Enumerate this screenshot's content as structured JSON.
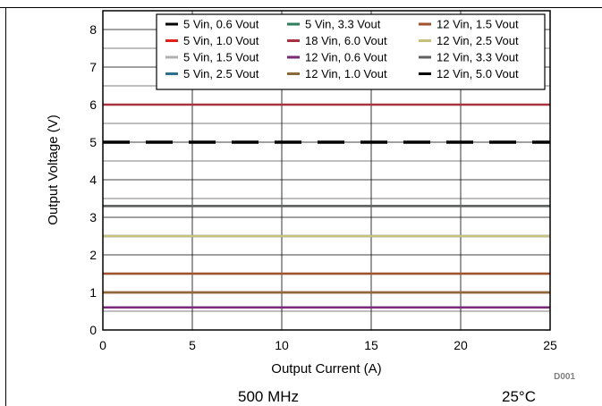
{
  "chart_data": {
    "type": "line",
    "xlabel": "Output Current (A)",
    "ylabel": "Output Voltage (V)",
    "xlim": [
      0,
      25
    ],
    "ylim": [
      0,
      8.5
    ],
    "xticks": [
      0,
      5,
      10,
      15,
      20,
      25
    ],
    "yticks": [
      0,
      1,
      2,
      3,
      4,
      5,
      6,
      7,
      8
    ],
    "grid": true,
    "legend_position": "top-right",
    "x": [
      0,
      25
    ],
    "series": [
      {
        "name": "5 Vin, 0.6 Vout",
        "color": "#000000",
        "values": [
          0.6,
          0.6
        ]
      },
      {
        "name": "5 Vin, 1.0 Vout",
        "color": "#e0201f",
        "values": [
          1.0,
          1.0
        ]
      },
      {
        "name": "5 Vin, 1.5 Vout",
        "color": "#b0b0b0",
        "values": [
          1.5,
          1.5
        ]
      },
      {
        "name": "5 Vin, 2.5 Vout",
        "color": "#2f6f8f",
        "values": [
          2.5,
          2.5
        ]
      },
      {
        "name": "5 Vin, 3.3 Vout",
        "color": "#2e7d5b",
        "values": [
          3.3,
          3.3
        ]
      },
      {
        "name": "18 Vin, 6.0 Vout",
        "color": "#a8323e",
        "values": [
          6.0,
          6.0
        ]
      },
      {
        "name": "12 Vin, 0.6 Vout",
        "color": "#7a2a7a",
        "values": [
          0.6,
          0.6
        ]
      },
      {
        "name": "12 Vin, 1.0 Vout",
        "color": "#8b6a3a",
        "values": [
          1.0,
          1.0
        ]
      },
      {
        "name": "12 Vin, 1.5 Vout",
        "color": "#a0522d",
        "values": [
          1.5,
          1.5
        ]
      },
      {
        "name": "12 Vin, 2.5 Vout",
        "color": "#c8c07a",
        "values": [
          2.5,
          2.5
        ]
      },
      {
        "name": "12 Vin, 3.3 Vout",
        "color": "#606060",
        "values": [
          3.3,
          3.3
        ]
      },
      {
        "name": "12 Vin, 5.0 Vout",
        "color": "#000000",
        "dashed": true,
        "values": [
          5.0,
          5.0
        ]
      }
    ],
    "legend_order": [
      0,
      4,
      8,
      1,
      5,
      9,
      2,
      6,
      10,
      3,
      7,
      11
    ],
    "code": "D001"
  },
  "captions": {
    "left": "500 MHz",
    "right": "25°C"
  }
}
